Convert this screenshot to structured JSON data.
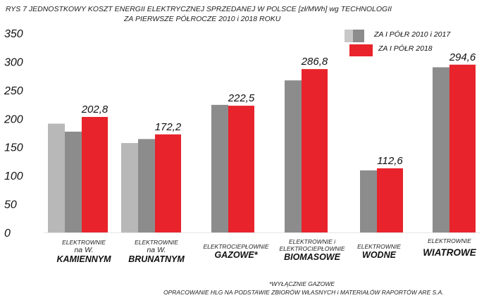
{
  "title": {
    "line1": "RYS 7  JEDNOSTKOWY KOSZT ENERGII ELEKTRYCZNEJ SPRZEDANEJ W POLSCE [zł/MWh] wg TECHNOLOGII",
    "line2": "ZA PIERWSZE PÓŁROCZE 2010 i 2018 ROKU"
  },
  "legend": {
    "items": [
      {
        "label": "ZA I PÓŁR 2010 i 2017",
        "color": "#9a9a9a"
      },
      {
        "label": "ZA I PÓŁR 2018",
        "color": "#e8232b"
      }
    ]
  },
  "categories": [
    {
      "small": "ELEKTROWNIE",
      "mid": "na W.",
      "big": "KAMIENNYM"
    },
    {
      "small": "ELEKTROWNIE",
      "mid": "na W.",
      "big": "BRUNATNYM"
    },
    {
      "small": "ELEKTROCIEPŁOWNIE",
      "big": "GAZOWE*"
    },
    {
      "small": "ELEKTROWNIE i",
      "small2": "ELEKTROCIEPŁOWNIE",
      "big": "BIOMASOWE"
    },
    {
      "small": "ELEKTROWNIE",
      "big": "WODNE"
    },
    {
      "small": "ELEKTROWNIE",
      "big": "WIATROWE"
    }
  ],
  "footnote": {
    "line1": "*WYŁĄCZNIE GAZOWE",
    "line2": "OPRACOWANIE HLG  NA PODSTAWIE ZBIORÓW WŁASNYCH i MATERIAŁÓW  RAPORTÓW ARE S.A."
  },
  "chart_data": {
    "type": "bar",
    "title": "JEDNOSTKOWY KOSZT ENERGII ELEKTRYCZNEJ SPRZEDANEJ W POLSCE [zł/MWh] wg TECHNOLOGII",
    "ylim": [
      0,
      350
    ],
    "yticks": [
      0,
      50,
      100,
      150,
      200,
      250,
      300,
      350
    ],
    "colors": {
      "2010": "#b8b8b8",
      "2017": "#8c8c8c",
      "2018": "#e8232b"
    },
    "series": [
      {
        "name": "ZA I PÓŁR 2010",
        "values": [
          191,
          157,
          null,
          null,
          null,
          null
        ]
      },
      {
        "name": "ZA I PÓŁR 2017",
        "values": [
          177,
          164,
          224,
          267,
          109,
          290
        ]
      },
      {
        "name": "ZA I PÓŁR 2018",
        "values": [
          202.8,
          172.2,
          222.5,
          286.8,
          112.6,
          294.6
        ]
      }
    ],
    "value_labels": [
      "202,8",
      "172,2",
      "222,5",
      "286,8",
      "112,6",
      "294,6"
    ]
  }
}
